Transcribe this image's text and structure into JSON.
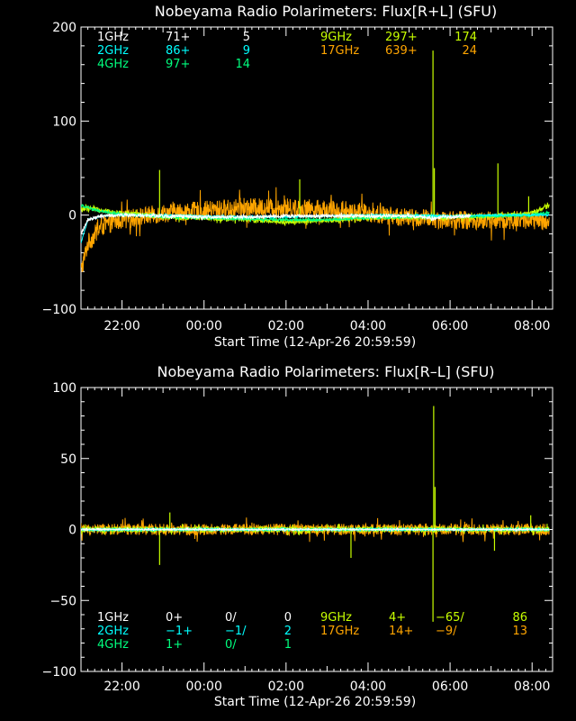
{
  "chart_data": [
    {
      "type": "line",
      "title": "Nobeyama Radio Polarimeters: Flux[R+L] (SFU)",
      "xlabel": "Start Time (12-Apr-26 20:59:59)",
      "ylabel": "",
      "xlim": [
        "20:59:59",
        "08:30"
      ],
      "ylim": [
        -100,
        200
      ],
      "x_ticks": [
        "22:00",
        "00:00",
        "02:00",
        "04:00",
        "06:00",
        "08:00"
      ],
      "y_ticks": [
        -100,
        0,
        100,
        200
      ],
      "grid": false,
      "legend_position": "top",
      "legend": [
        {
          "band": "1GHz",
          "value": "71+",
          "extra": "5",
          "color": "#ffffff"
        },
        {
          "band": "2GHz",
          "value": "86+",
          "extra": "9",
          "color": "#00ffff"
        },
        {
          "band": "4GHz",
          "value": "97+",
          "extra": "14",
          "color": "#00ff7f"
        },
        {
          "band": "9GHz",
          "value": "297+",
          "extra": "174",
          "color": "#c8ff00"
        },
        {
          "band": "17GHz",
          "value": "639+",
          "extra": "24",
          "color": "#ffa500"
        }
      ],
      "series": [
        {
          "name": "17GHz",
          "color": "#ffa500",
          "x": [
            "21:00",
            "21:10",
            "21:30",
            "22:00",
            "23:00",
            "00:00",
            "01:00",
            "02:00",
            "03:00",
            "04:00",
            "05:00",
            "06:00",
            "07:00",
            "08:00",
            "08:25"
          ],
          "y": [
            -60,
            -30,
            -12,
            -5,
            2,
            5,
            8,
            8,
            6,
            2,
            -3,
            -5,
            -6,
            -5,
            -10
          ],
          "noise": 10
        },
        {
          "name": "9GHz",
          "color": "#c8ff00",
          "x": [
            "21:00",
            "21:10",
            "21:30",
            "22:00",
            "23:00",
            "00:00",
            "01:00",
            "02:00",
            "03:00",
            "04:00",
            "05:00",
            "06:00",
            "07:00",
            "08:00",
            "08:25"
          ],
          "y": [
            5,
            8,
            5,
            2,
            -2,
            -3,
            -5,
            -7,
            -6,
            -3,
            -2,
            -2,
            -1,
            2,
            10
          ],
          "noise": 2.5,
          "spikes": [
            {
              "x": "22:55",
              "y": 48
            },
            {
              "x": "02:20",
              "y": 38
            },
            {
              "x": "05:35",
              "y": 175
            },
            {
              "x": "05:37",
              "y": 50
            },
            {
              "x": "07:10",
              "y": 55
            },
            {
              "x": "07:55",
              "y": 20
            }
          ]
        },
        {
          "name": "4GHz",
          "color": "#00ff7f",
          "x": [
            "21:00",
            "21:10",
            "21:30",
            "22:00",
            "23:00",
            "00:00",
            "01:00",
            "02:00",
            "03:00",
            "04:00",
            "05:00",
            "06:00",
            "07:00",
            "08:00",
            "08:25"
          ],
          "y": [
            10,
            8,
            4,
            1,
            -2,
            -3,
            -4,
            -5,
            -5,
            -3,
            -2,
            -2,
            -1,
            0,
            3
          ],
          "noise": 1.2
        },
        {
          "name": "2GHz",
          "color": "#00ffff",
          "x": [
            "21:00",
            "21:10",
            "21:30",
            "22:00",
            "23:00",
            "00:00",
            "01:00",
            "02:00",
            "03:00",
            "04:00",
            "05:00",
            "06:00",
            "07:00",
            "08:00",
            "08:25"
          ],
          "y": [
            -30,
            -5,
            -1,
            0,
            0,
            -1,
            -2,
            -2,
            -1,
            0,
            0,
            -1,
            0,
            0,
            0
          ],
          "noise": 0.8
        },
        {
          "name": "1GHz",
          "color": "#ffffff",
          "x": [
            "21:00",
            "21:10",
            "21:30",
            "22:00",
            "23:00",
            "00:00",
            "01:00",
            "02:00",
            "03:00",
            "04:00",
            "05:00",
            "05:30",
            "06:00",
            "06:30"
          ],
          "y": [
            -20,
            -5,
            -1,
            0,
            -1,
            -2,
            -2,
            -1,
            -1,
            -1,
            -1,
            -3,
            -2,
            -1
          ],
          "noise": 1.8
        }
      ]
    },
    {
      "type": "line",
      "title": "Nobeyama Radio Polarimeters: Flux[R–L] (SFU)",
      "xlabel": "Start Time (12-Apr-26 20:59:59)",
      "ylabel": "",
      "xlim": [
        "20:59:59",
        "08:30"
      ],
      "ylim": [
        -100,
        100
      ],
      "x_ticks": [
        "22:00",
        "00:00",
        "02:00",
        "04:00",
        "06:00",
        "08:00"
      ],
      "y_ticks": [
        -100,
        -50,
        0,
        50,
        100
      ],
      "grid": false,
      "legend_position": "bottom",
      "legend": [
        {
          "band": "1GHz",
          "value": "0+",
          "ratio": "0/",
          "extra": "0",
          "color": "#ffffff"
        },
        {
          "band": "2GHz",
          "value": "−1+",
          "ratio": "−1/",
          "extra": "2",
          "color": "#00ffff"
        },
        {
          "band": "4GHz",
          "value": "1+",
          "ratio": "0/",
          "extra": "1",
          "color": "#00ff7f"
        },
        {
          "band": "9GHz",
          "value": "4+",
          "ratio": "−65/",
          "extra": "86",
          "color": "#c8ff00"
        },
        {
          "band": "17GHz",
          "value": "14+",
          "ratio": "−9/",
          "extra": "13",
          "color": "#ffa500"
        }
      ],
      "series": [
        {
          "name": "17GHz",
          "color": "#ffa500",
          "x": [
            "21:00",
            "08:25"
          ],
          "y": [
            0,
            0
          ],
          "noise": 4
        },
        {
          "name": "9GHz",
          "color": "#c8ff00",
          "x": [
            "21:00",
            "08:25"
          ],
          "y": [
            0,
            0
          ],
          "noise": 2,
          "spikes": [
            {
              "x": "22:55",
              "y": -25
            },
            {
              "x": "23:10",
              "y": 12
            },
            {
              "x": "03:35",
              "y": -20
            },
            {
              "x": "05:36",
              "y": 87
            },
            {
              "x": "05:35",
              "y": -65
            },
            {
              "x": "05:38",
              "y": 30
            },
            {
              "x": "07:05",
              "y": -15
            },
            {
              "x": "07:58",
              "y": 10
            }
          ]
        },
        {
          "name": "4GHz",
          "color": "#00ff7f",
          "x": [
            "21:00",
            "08:25"
          ],
          "y": [
            0,
            0
          ],
          "noise": 0.8
        },
        {
          "name": "2GHz",
          "color": "#00ffff",
          "x": [
            "21:00",
            "08:25"
          ],
          "y": [
            0,
            0
          ],
          "noise": 0.6
        },
        {
          "name": "1GHz",
          "color": "#ffffff",
          "x": [
            "21:00",
            "08:25"
          ],
          "y": [
            0,
            0
          ],
          "noise": 0.5
        }
      ]
    }
  ]
}
